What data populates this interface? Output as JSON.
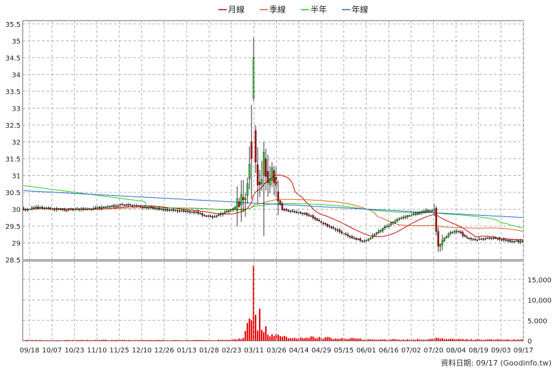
{
  "chart_data": {
    "type": "candlestick",
    "legend": [
      {
        "name": "月線",
        "color": "#cc0000"
      },
      {
        "name": "季線",
        "color": "#e06020"
      },
      {
        "name": "半年",
        "color": "#22cc22"
      },
      {
        "name": "年線",
        "color": "#2266cc"
      }
    ],
    "legend_position": "top-center",
    "grid": true,
    "price_axis": {
      "ylim": [
        28.5,
        35.6
      ],
      "ticks": [
        "28.5",
        "29",
        "29.5",
        "30",
        "30.5",
        "31",
        "31.5",
        "32",
        "32.5",
        "33",
        "33.5",
        "34",
        "34.5",
        "35",
        "35.5"
      ]
    },
    "volume_axis": {
      "ylim": [
        0,
        19500
      ],
      "ticks": [
        "0",
        "5,000",
        "10,000",
        "15,000"
      ]
    },
    "x_ticks": [
      "09/18",
      "10/07",
      "10/23",
      "11/10",
      "11/25",
      "12/10",
      "12/26",
      "01/13",
      "01/28",
      "02/23",
      "03/11",
      "03/26",
      "04/14",
      "04/29",
      "05/15",
      "06/01",
      "06/16",
      "07/02",
      "07/20",
      "08/04",
      "08/19",
      "09/03",
      "09/17"
    ],
    "footer": "資料日期: 09/17  (Goodinfo.tw)",
    "up_color": "#22cc22",
    "down_color": "#cc0000",
    "volume_color": "#ee0000",
    "price_anchors": [
      [
        0,
        30.0
      ],
      [
        8,
        30.05
      ],
      [
        15,
        30.0
      ],
      [
        22,
        29.98
      ],
      [
        30,
        30.0
      ],
      [
        38,
        30.05
      ],
      [
        44,
        30.1
      ],
      [
        48,
        30.15
      ],
      [
        55,
        30.1
      ],
      [
        60,
        30.05
      ],
      [
        66,
        30.0
      ],
      [
        72,
        29.97
      ],
      [
        78,
        29.95
      ],
      [
        84,
        29.9
      ],
      [
        88,
        29.8
      ],
      [
        92,
        29.78
      ],
      [
        96,
        29.85
      ],
      [
        100,
        29.95
      ],
      [
        104,
        30.1
      ],
      [
        107,
        30.3
      ],
      [
        109,
        30.7
      ],
      [
        110,
        31.2
      ],
      [
        111,
        31.8
      ],
      [
        112,
        32.1
      ],
      [
        113,
        31.5
      ],
      [
        114,
        30.9
      ],
      [
        115,
        30.6
      ],
      [
        116,
        31.0
      ],
      [
        117,
        31.3
      ],
      [
        118,
        30.9
      ],
      [
        119,
        30.6
      ],
      [
        120,
        30.8
      ],
      [
        121,
        31.1
      ],
      [
        122,
        30.7
      ],
      [
        124,
        30.3
      ],
      [
        126,
        30.0
      ],
      [
        130,
        29.95
      ],
      [
        135,
        29.9
      ],
      [
        140,
        29.8
      ],
      [
        145,
        29.6
      ],
      [
        150,
        29.45
      ],
      [
        155,
        29.3
      ],
      [
        160,
        29.15
      ],
      [
        165,
        29.05
      ],
      [
        168,
        29.1
      ],
      [
        172,
        29.3
      ],
      [
        178,
        29.55
      ],
      [
        184,
        29.75
      ],
      [
        190,
        29.85
      ],
      [
        196,
        29.95
      ],
      [
        200,
        29.95
      ],
      [
        201,
        29.3
      ],
      [
        202,
        28.9
      ],
      [
        204,
        29.1
      ],
      [
        208,
        29.3
      ],
      [
        212,
        29.35
      ],
      [
        214,
        29.2
      ],
      [
        218,
        29.1
      ],
      [
        224,
        29.1
      ],
      [
        228,
        29.15
      ],
      [
        232,
        29.1
      ],
      [
        236,
        29.05
      ],
      [
        240,
        29.05
      ],
      [
        243,
        29.05
      ]
    ],
    "volume_anchors": [
      [
        0,
        150
      ],
      [
        20,
        150
      ],
      [
        40,
        180
      ],
      [
        60,
        150
      ],
      [
        80,
        150
      ],
      [
        100,
        200
      ],
      [
        104,
        350
      ],
      [
        106,
        600
      ],
      [
        107,
        900
      ],
      [
        108,
        1800
      ],
      [
        109,
        4200
      ],
      [
        110,
        7500
      ],
      [
        111,
        6300
      ],
      [
        112,
        18400
      ],
      [
        113,
        5600
      ],
      [
        114,
        4100
      ],
      [
        115,
        6100
      ],
      [
        116,
        3900
      ],
      [
        117,
        3200
      ],
      [
        118,
        2600
      ],
      [
        119,
        2100
      ],
      [
        120,
        1600
      ],
      [
        122,
        1300
      ],
      [
        124,
        1100
      ],
      [
        126,
        950
      ],
      [
        128,
        900
      ],
      [
        130,
        850
      ],
      [
        134,
        700
      ],
      [
        138,
        900
      ],
      [
        142,
        800
      ],
      [
        146,
        700
      ],
      [
        150,
        650
      ],
      [
        154,
        600
      ],
      [
        158,
        550
      ],
      [
        162,
        500
      ],
      [
        166,
        400
      ],
      [
        170,
        350
      ],
      [
        180,
        320
      ],
      [
        190,
        300
      ],
      [
        200,
        400
      ],
      [
        202,
        700
      ],
      [
        204,
        450
      ],
      [
        210,
        350
      ],
      [
        220,
        300
      ],
      [
        230,
        280
      ],
      [
        240,
        250
      ],
      [
        243,
        250
      ]
    ],
    "n_bars": 244,
    "ma_period": {
      "月線": 20,
      "季線": 60,
      "半年": 120,
      "年線": 240
    }
  }
}
